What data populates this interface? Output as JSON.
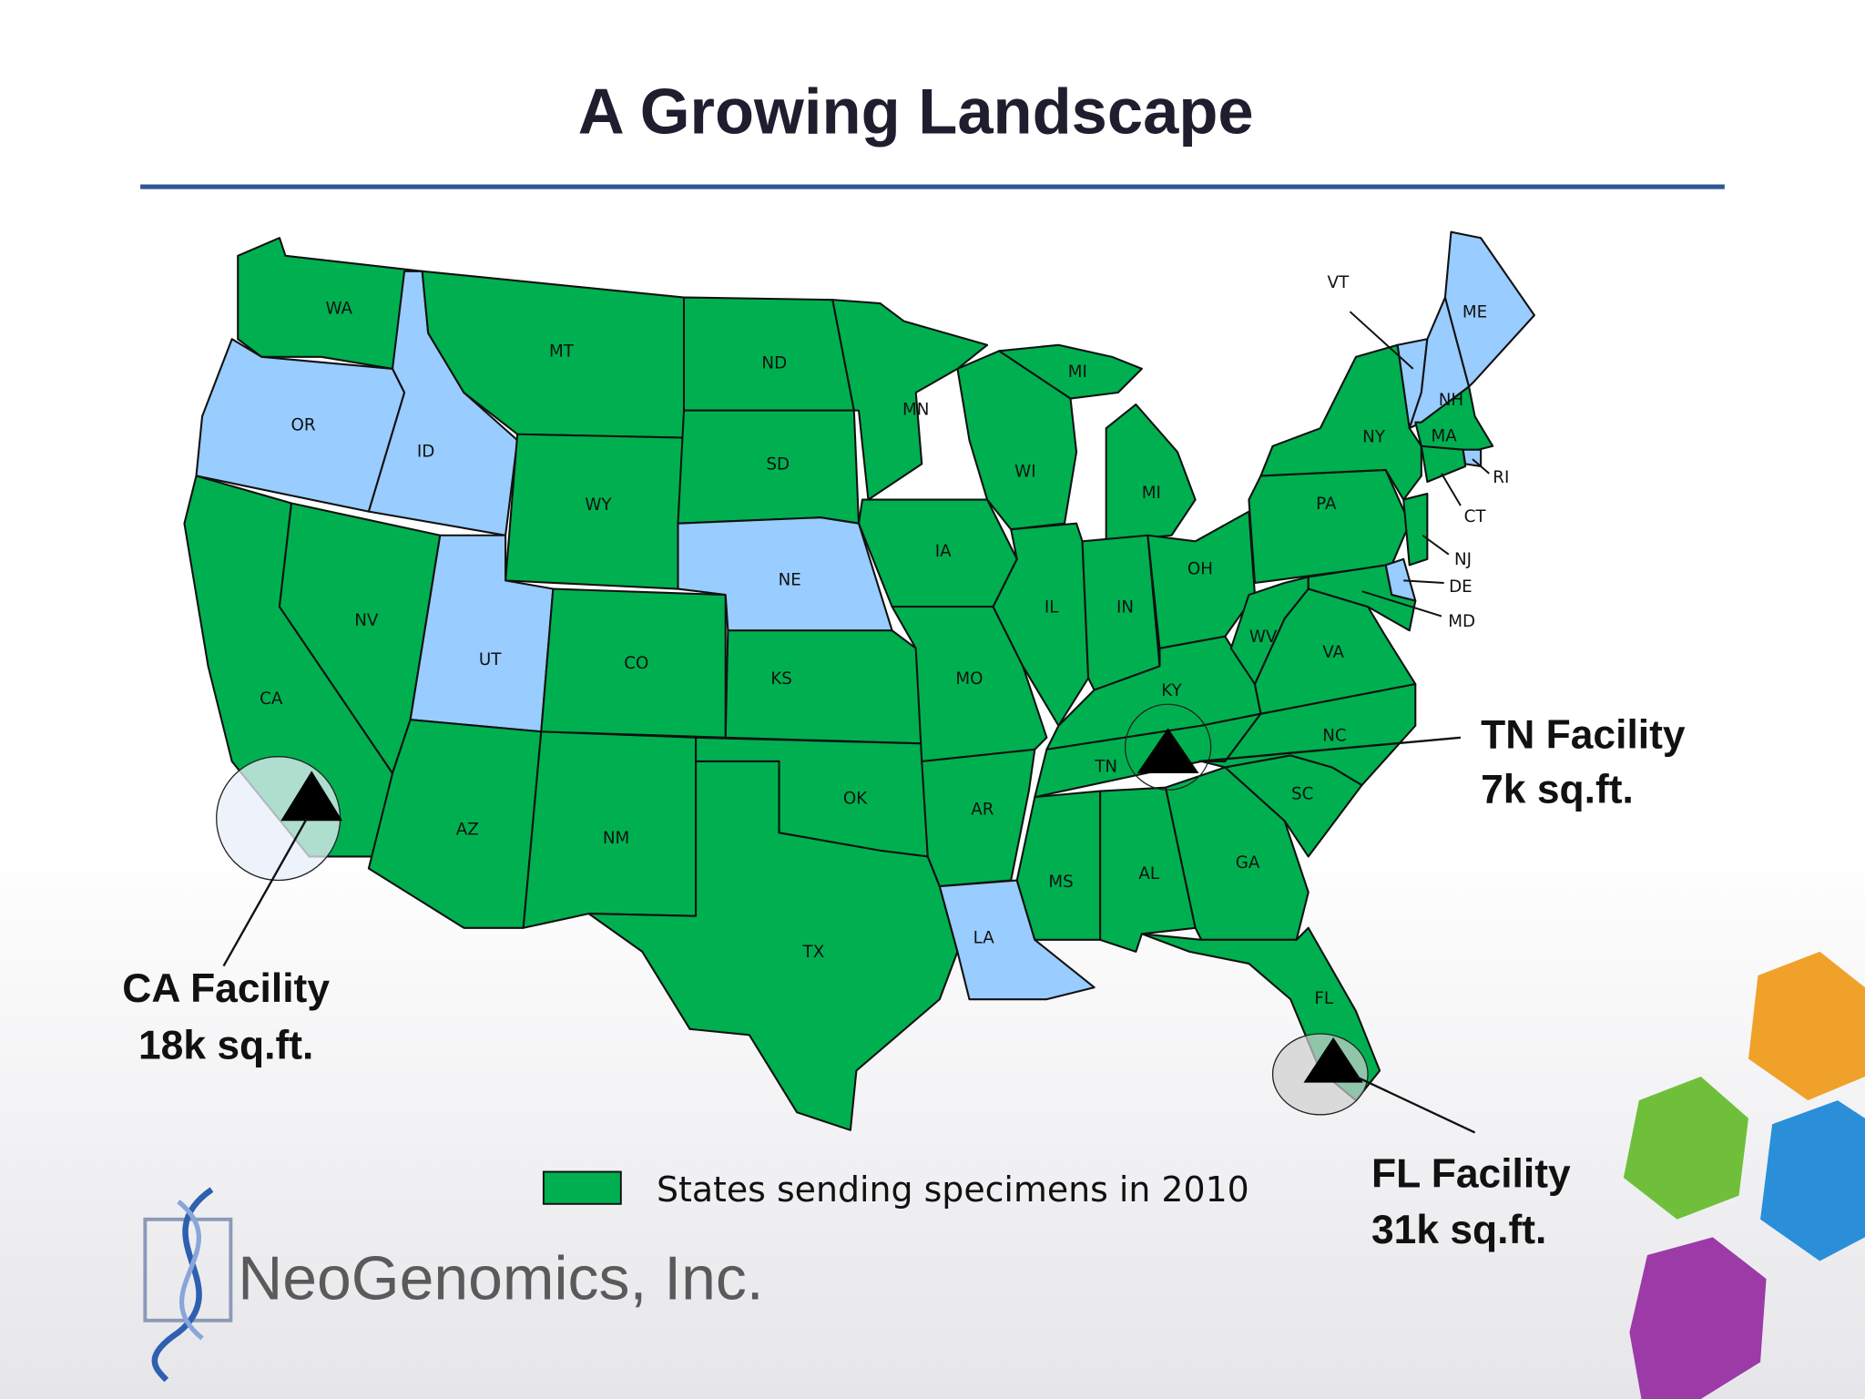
{
  "title": "A Growing Landscape",
  "map": {
    "legend": {
      "label": "States sending specimens in 2010",
      "color": "#00b050"
    },
    "other_color": "#99ccff",
    "states": [
      {
        "label": "WA",
        "sending": true
      },
      {
        "label": "OR",
        "sending": false
      },
      {
        "label": "CA",
        "sending": true
      },
      {
        "label": "NV",
        "sending": true
      },
      {
        "label": "ID",
        "sending": false
      },
      {
        "label": "MT",
        "sending": true
      },
      {
        "label": "WY",
        "sending": true
      },
      {
        "label": "UT",
        "sending": false
      },
      {
        "label": "AZ",
        "sending": true
      },
      {
        "label": "NM",
        "sending": true
      },
      {
        "label": "CO",
        "sending": true
      },
      {
        "label": "ND",
        "sending": true
      },
      {
        "label": "SD",
        "sending": true
      },
      {
        "label": "NE",
        "sending": false
      },
      {
        "label": "KS",
        "sending": true
      },
      {
        "label": "OK",
        "sending": true
      },
      {
        "label": "TX",
        "sending": true
      },
      {
        "label": "MN",
        "sending": true
      },
      {
        "label": "IA",
        "sending": true
      },
      {
        "label": "MO",
        "sending": true
      },
      {
        "label": "AR",
        "sending": true
      },
      {
        "label": "LA",
        "sending": false
      },
      {
        "label": "WI",
        "sending": true
      },
      {
        "label": "MI",
        "sending": true
      },
      {
        "label": "MI",
        "sending": true
      },
      {
        "label": "IL",
        "sending": true
      },
      {
        "label": "IN",
        "sending": true
      },
      {
        "label": "OH",
        "sending": true
      },
      {
        "label": "KY",
        "sending": true
      },
      {
        "label": "TN",
        "sending": true
      },
      {
        "label": "MS",
        "sending": true
      },
      {
        "label": "AL",
        "sending": true
      },
      {
        "label": "GA",
        "sending": true
      },
      {
        "label": "FL",
        "sending": true
      },
      {
        "label": "SC",
        "sending": true
      },
      {
        "label": "NC",
        "sending": true
      },
      {
        "label": "VA",
        "sending": true
      },
      {
        "label": "WV",
        "sending": true
      },
      {
        "label": "PA",
        "sending": true
      },
      {
        "label": "NY",
        "sending": true
      },
      {
        "label": "VT",
        "sending": false
      },
      {
        "label": "NH",
        "sending": false
      },
      {
        "label": "ME",
        "sending": false
      },
      {
        "label": "MA",
        "sending": true
      },
      {
        "label": "RI",
        "sending": false
      },
      {
        "label": "CT",
        "sending": true
      },
      {
        "label": "NJ",
        "sending": true
      },
      {
        "label": "DE",
        "sending": false
      },
      {
        "label": "MD",
        "sending": true
      }
    ]
  },
  "facilities": [
    {
      "name": "CA Facility",
      "size": "18k sq.ft."
    },
    {
      "name": "TN Facility",
      "size": "7k sq.ft."
    },
    {
      "name": "FL Facility",
      "size": "31k sq.ft."
    }
  ],
  "logo": "NeoGenomics, Inc."
}
